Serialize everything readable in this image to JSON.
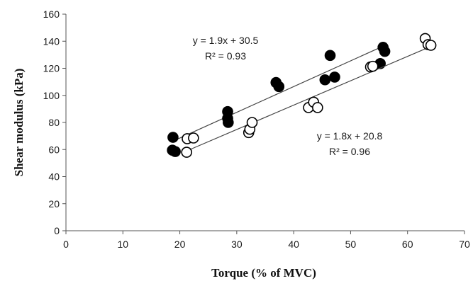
{
  "chart_data": {
    "type": "scatter",
    "title": "",
    "xlabel": "Torque (% of MVC)",
    "ylabel": "Shear modulus (kPa)",
    "xlim": [
      0,
      70
    ],
    "ylim": [
      0,
      160
    ],
    "x_ticks": [
      "0",
      "10",
      "20",
      "30",
      "40",
      "50",
      "60",
      "70"
    ],
    "y_ticks": [
      "0",
      "20",
      "40",
      "60",
      "80",
      "100",
      "120",
      "140",
      "160"
    ],
    "grid": false,
    "legend": "none",
    "series": [
      {
        "marker": "filled-circle",
        "color": "#000000",
        "points": [
          [
            18.8,
            69
          ],
          [
            18.7,
            59.5
          ],
          [
            19.2,
            58.5
          ],
          [
            28.4,
            88
          ],
          [
            28.4,
            83
          ],
          [
            28.5,
            80
          ],
          [
            36.9,
            109.5
          ],
          [
            37.4,
            106.5
          ],
          [
            45.5,
            111.5
          ],
          [
            46.4,
            129.5
          ],
          [
            47.2,
            113.5
          ],
          [
            55.2,
            123.5
          ],
          [
            55.7,
            135.5
          ],
          [
            56.0,
            132.5
          ]
        ],
        "trendline": {
          "slope": 1.9,
          "intercept": 30.5,
          "x_range": [
            18.7,
            56.0
          ]
        },
        "equation": "y = 1.9x + 30.5",
        "r2": "R² = 0.93"
      },
      {
        "marker": "open-circle",
        "color": "#000000",
        "points": [
          [
            21.2,
            58
          ],
          [
            21.3,
            68
          ],
          [
            22.4,
            68.5
          ],
          [
            32.1,
            72.5
          ],
          [
            32.3,
            75
          ],
          [
            32.7,
            80
          ],
          [
            42.6,
            91
          ],
          [
            43.5,
            95
          ],
          [
            44.2,
            91
          ],
          [
            53.5,
            121
          ],
          [
            53.9,
            121.5
          ],
          [
            63.1,
            142
          ],
          [
            63.6,
            137.5
          ],
          [
            64.1,
            137
          ]
        ],
        "trendline": {
          "slope": 1.8,
          "intercept": 20.8,
          "x_range": [
            21.2,
            64.1
          ]
        },
        "equation": "y = 1.8x + 20.8",
        "r2": "R² = 0.96"
      }
    ]
  }
}
